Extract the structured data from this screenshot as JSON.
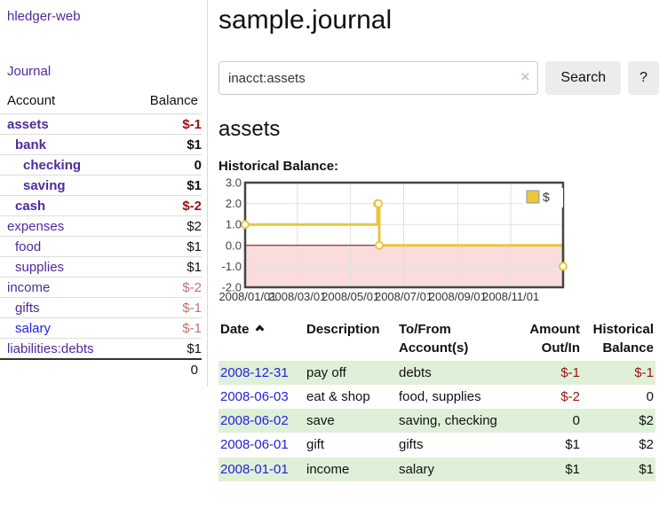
{
  "app": {
    "title": "hledger-web"
  },
  "colors": {
    "purple": "#4f2a9e",
    "blue": "#2222dd",
    "neg": "#991111",
    "neg_soft": "#bf7272",
    "green": "#dff0d8",
    "gold": "#e8c63f",
    "pink": "#fbdcdc",
    "zero": "#7a0000"
  },
  "sidebar": {
    "journal_label": "Journal",
    "accounts_table": {
      "headers": {
        "account": "Account",
        "balance": "Balance"
      },
      "rows": [
        {
          "name": "assets",
          "balance": "$-1",
          "indent": 1,
          "bold": true,
          "balance_style": "neg-strong"
        },
        {
          "name": "bank",
          "balance": "$1",
          "indent": 2,
          "bold": true,
          "balance_style": "pos-strong"
        },
        {
          "name": "checking",
          "balance": "0",
          "indent": 3,
          "bold": true,
          "balance_style": "pos-strong"
        },
        {
          "name": "saving",
          "balance": "$1",
          "indent": 3,
          "bold": true,
          "balance_style": "pos-strong"
        },
        {
          "name": "cash",
          "balance": "$-2",
          "indent": 2,
          "bold": true,
          "balance_style": "neg-strong"
        },
        {
          "name": "expenses",
          "balance": "$2",
          "indent": 1,
          "bold": false,
          "balance_style": "pos"
        },
        {
          "name": "food",
          "balance": "$1",
          "indent": 2,
          "bold": false,
          "balance_style": "pos"
        },
        {
          "name": "supplies",
          "balance": "$1",
          "indent": 2,
          "bold": false,
          "balance_style": "pos"
        },
        {
          "name": "income",
          "balance": "$-2",
          "indent": 1,
          "bold": false,
          "balance_style": "neg-soft"
        },
        {
          "name": "gifts",
          "balance": "$-1",
          "indent": 2,
          "bold": false,
          "balance_style": "neg-soft"
        },
        {
          "name": "salary",
          "balance": "$-1",
          "indent": 2,
          "bold": false,
          "balance_style": "neg-soft",
          "link_style": "unvisited"
        },
        {
          "name": "liabilities:debts",
          "balance": "$1",
          "indent": 1,
          "bold": false,
          "balance_style": "pos"
        }
      ],
      "total": "0"
    }
  },
  "main": {
    "page_title": "sample.journal",
    "search": {
      "value": "inacct:assets",
      "clear_icon": "×",
      "button_label": "Search",
      "help_label": "?"
    },
    "account_heading": "assets",
    "chart_heading": "Historical Balance:"
  },
  "chart_data": {
    "type": "line",
    "title": "Historical Balance:",
    "step": true,
    "legend": {
      "label": "$",
      "position": "top-right"
    },
    "x_tick_labels": [
      "2008/01/01",
      "2008/03/01",
      "2008/05/01",
      "2008/07/01",
      "2008/09/01",
      "2008/11/01"
    ],
    "x_tick_days": [
      0,
      60,
      121,
      182,
      244,
      305
    ],
    "x_range_days": 365,
    "y_ticks": [
      3.0,
      2.0,
      1.0,
      0.0,
      -1.0,
      -2.0
    ],
    "ylim": [
      -2,
      3
    ],
    "grid": true,
    "series": [
      {
        "name": "$",
        "points": [
          {
            "date": "2008-01-01",
            "day": 0,
            "value": 1
          },
          {
            "date": "2008-06-01",
            "day": 152,
            "value": 2
          },
          {
            "date": "2008-06-02",
            "day": 153,
            "value": 2
          },
          {
            "date": "2008-06-03",
            "day": 154,
            "value": 0
          },
          {
            "date": "2008-12-31",
            "day": 365,
            "value": -1
          }
        ]
      }
    ],
    "colors": {
      "line": "#e8c63f",
      "negative_region": "#fbdcdc",
      "zero_line": "#7a0000"
    }
  },
  "register_table": {
    "headers": [
      {
        "key": "date",
        "lines": [
          "Date"
        ],
        "sort": "asc",
        "sortable": true
      },
      {
        "key": "description",
        "lines": [
          "Description"
        ]
      },
      {
        "key": "accounts",
        "lines": [
          "To/From",
          "Account(s)"
        ]
      },
      {
        "key": "amount",
        "lines": [
          "Amount",
          "Out/In"
        ],
        "align": "right"
      },
      {
        "key": "balance",
        "lines": [
          "Historical",
          "Balance"
        ],
        "align": "right"
      }
    ],
    "rows": [
      {
        "date": "2008-12-31",
        "description": "pay off",
        "accounts": "debts",
        "amount": "$-1",
        "amount_style": "neg",
        "balance": "$-1",
        "balance_style": "neg"
      },
      {
        "date": "2008-06-03",
        "description": "eat & shop",
        "accounts": "food, supplies",
        "amount": "$-2",
        "amount_style": "neg",
        "balance": "0",
        "balance_style": "pos"
      },
      {
        "date": "2008-06-02",
        "description": "save",
        "accounts": "saving, checking",
        "amount": "0",
        "amount_style": "pos",
        "balance": "$2",
        "balance_style": "pos"
      },
      {
        "date": "2008-06-01",
        "description": "gift",
        "accounts": "gifts",
        "amount": "$1",
        "amount_style": "pos",
        "balance": "$2",
        "balance_style": "pos"
      },
      {
        "date": "2008-01-01",
        "description": "income",
        "accounts": "salary",
        "amount": "$1",
        "amount_style": "pos",
        "balance": "$1",
        "balance_style": "pos"
      }
    ]
  }
}
